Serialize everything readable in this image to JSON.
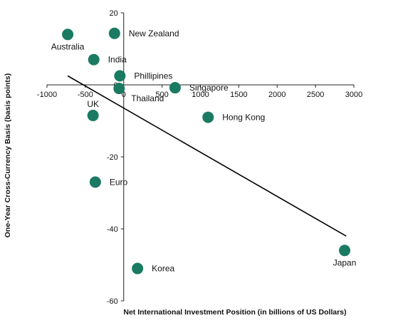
{
  "chart_data": {
    "type": "scatter",
    "title": "",
    "xlabel": "Net International Investment Position (in billions of US Dollars)",
    "ylabel": "One-Year Cross-Currency Basis (basis points)",
    "xlim": [
      -1000,
      3000
    ],
    "ylim": [
      -60,
      20
    ],
    "x_ticks": [
      -1000,
      -500,
      0,
      500,
      1000,
      1500,
      2000,
      2500,
      3000
    ],
    "y_ticks": [
      20,
      0,
      -20,
      -40,
      -60
    ],
    "x_tick_labels": [
      "-1000",
      "-500",
      "0",
      "500",
      "1000",
      "1500",
      "2000",
      "2500",
      "3000"
    ],
    "y_tick_labels": [
      "20",
      "0",
      "-20",
      "-40",
      "-60"
    ],
    "marker_color": "#1a7a62",
    "line_color": "#000000",
    "points": [
      {
        "name": "Australia",
        "x": -730,
        "y": 14,
        "label_pos": "below"
      },
      {
        "name": "New Zealand",
        "x": -120,
        "y": 14.3,
        "label_pos": "right"
      },
      {
        "name": "India",
        "x": -390,
        "y": 7,
        "label_pos": "right"
      },
      {
        "name": "Phillipines",
        "x": -50,
        "y": 2.5,
        "label_pos": "right"
      },
      {
        "name": "Thailand",
        "x": -60,
        "y": -1,
        "label_pos": "right-below"
      },
      {
        "name": "Singapore",
        "x": 670,
        "y": -0.8,
        "label_pos": "right"
      },
      {
        "name": "UK",
        "x": -400,
        "y": -8.5,
        "label_pos": "above"
      },
      {
        "name": "Hong Kong",
        "x": 1100,
        "y": -9,
        "label_pos": "right"
      },
      {
        "name": "Euro",
        "x": -370,
        "y": -27,
        "label_pos": "right"
      },
      {
        "name": "Korea",
        "x": 180,
        "y": -51,
        "label_pos": "right"
      },
      {
        "name": "Japan",
        "x": 2880,
        "y": -46,
        "label_pos": "below"
      }
    ],
    "trendline": {
      "x": [
        -730,
        2900
      ],
      "y": [
        2.5,
        -42
      ]
    },
    "grid": false,
    "legend": "none"
  }
}
